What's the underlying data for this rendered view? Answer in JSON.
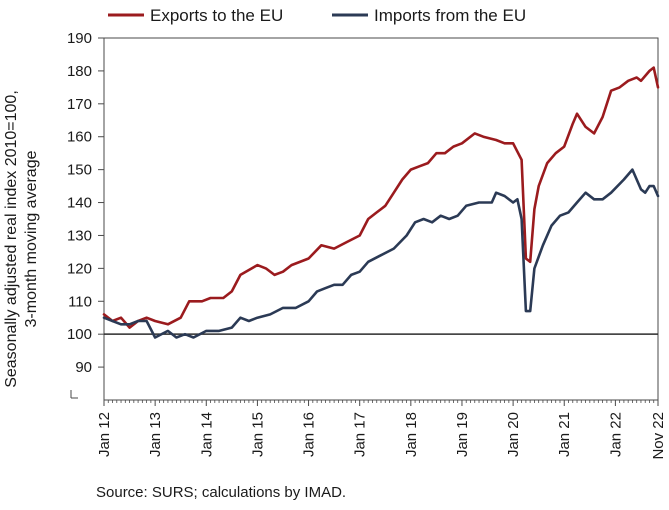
{
  "chart_data": {
    "type": "line",
    "xlabel": "",
    "ylabel_lines": [
      "Seasonally adjusted real index 2010=100,",
      "3-month moving average"
    ],
    "ylim": [
      80,
      190
    ],
    "yticks": [
      190,
      180,
      170,
      160,
      150,
      140,
      130,
      120,
      110,
      100,
      90
    ],
    "baseline": 100,
    "xticks": [
      "Jan 12",
      "Jan 13",
      "Jan 14",
      "Jan 15",
      "Jan 16",
      "Jan 17",
      "Jan 18",
      "Jan 19",
      "Jan 20",
      "Jan 21",
      "Jan 22",
      "Nov 22"
    ],
    "legend_position": "top",
    "grid": false,
    "series": [
      {
        "name": "Exports to the EU",
        "color": "#9b1b1e",
        "points": [
          [
            "Jan 12",
            106
          ],
          [
            "Mar 12",
            104
          ],
          [
            "May 12",
            105
          ],
          [
            "Jul 12",
            102
          ],
          [
            "Sep 12",
            104
          ],
          [
            "Nov 12",
            105
          ],
          [
            "Jan 13",
            104
          ],
          [
            "Apr 13",
            103
          ],
          [
            "Jul 13",
            105
          ],
          [
            "Sep 13",
            110
          ],
          [
            "Dec 13",
            110
          ],
          [
            "Feb 14",
            111
          ],
          [
            "May 14",
            111
          ],
          [
            "Jul 14",
            113
          ],
          [
            "Sep 14",
            118
          ],
          [
            "Jan 15",
            121
          ],
          [
            "Mar 15",
            120
          ],
          [
            "May 15",
            118
          ],
          [
            "Jul 15",
            119
          ],
          [
            "Sep 15",
            121
          ],
          [
            "Jan 16",
            123
          ],
          [
            "Apr 16",
            127
          ],
          [
            "Jul 16",
            126
          ],
          [
            "Oct 16",
            128
          ],
          [
            "Jan 17",
            130
          ],
          [
            "Mar 17",
            135
          ],
          [
            "May 17",
            137
          ],
          [
            "Jul 17",
            139
          ],
          [
            "Sep 17",
            143
          ],
          [
            "Nov 17",
            147
          ],
          [
            "Jan 18",
            150
          ],
          [
            "Mar 18",
            151
          ],
          [
            "May 18",
            152
          ],
          [
            "Jul 18",
            155
          ],
          [
            "Sep 18",
            155
          ],
          [
            "Nov 18",
            157
          ],
          [
            "Jan 19",
            158
          ],
          [
            "Apr 19",
            161
          ],
          [
            "Jun 19",
            160
          ],
          [
            "Sep 19",
            159
          ],
          [
            "Nov 19",
            158
          ],
          [
            "Jan 20",
            158
          ],
          [
            "Mar 20",
            153
          ],
          [
            "Apr 20",
            123
          ],
          [
            "May 20",
            122
          ],
          [
            "Jun 20",
            138
          ],
          [
            "Jul 20",
            145
          ],
          [
            "Sep 20",
            152
          ],
          [
            "Nov 20",
            155
          ],
          [
            "Jan 21",
            157
          ],
          [
            "Mar 21",
            164
          ],
          [
            "Apr 21",
            167
          ],
          [
            "Jun 21",
            163
          ],
          [
            "Aug 21",
            161
          ],
          [
            "Oct 21",
            166
          ],
          [
            "Dec 21",
            174
          ],
          [
            "Feb 22",
            175
          ],
          [
            "Apr 22",
            177
          ],
          [
            "Jun 22",
            178
          ],
          [
            "Jul 22",
            177
          ],
          [
            "Sep 22",
            180
          ],
          [
            "Oct 22",
            181
          ],
          [
            "Nov 22",
            175
          ]
        ]
      },
      {
        "name": "Imports from the EU",
        "color": "#2b3a55",
        "points": [
          [
            "Jan 12",
            105
          ],
          [
            "Mar 12",
            104
          ],
          [
            "May 12",
            103
          ],
          [
            "Jul 12",
            103
          ],
          [
            "Sep 12",
            104
          ],
          [
            "Nov 12",
            104
          ],
          [
            "Jan 13",
            99
          ],
          [
            "Apr 13",
            101
          ],
          [
            "Jun 13",
            99
          ],
          [
            "Aug 13",
            100
          ],
          [
            "Oct 13",
            99
          ],
          [
            "Jan 14",
            101
          ],
          [
            "Apr 14",
            101
          ],
          [
            "Jul 14",
            102
          ],
          [
            "Sep 14",
            105
          ],
          [
            "Nov 14",
            104
          ],
          [
            "Jan 15",
            105
          ],
          [
            "Apr 15",
            106
          ],
          [
            "Jul 15",
            108
          ],
          [
            "Oct 15",
            108
          ],
          [
            "Jan 16",
            110
          ],
          [
            "Mar 16",
            113
          ],
          [
            "May 16",
            114
          ],
          [
            "Jul 16",
            115
          ],
          [
            "Sep 16",
            115
          ],
          [
            "Nov 16",
            118
          ],
          [
            "Jan 17",
            119
          ],
          [
            "Mar 17",
            122
          ],
          [
            "Jun 17",
            124
          ],
          [
            "Sep 17",
            126
          ],
          [
            "Dec 17",
            130
          ],
          [
            "Feb 18",
            134
          ],
          [
            "Apr 18",
            135
          ],
          [
            "Jun 18",
            134
          ],
          [
            "Aug 18",
            136
          ],
          [
            "Oct 18",
            135
          ],
          [
            "Dec 18",
            136
          ],
          [
            "Feb 19",
            139
          ],
          [
            "May 19",
            140
          ],
          [
            "Aug 19",
            140
          ],
          [
            "Sep 19",
            143
          ],
          [
            "Nov 19",
            142
          ],
          [
            "Jan 20",
            140
          ],
          [
            "Feb 20",
            141
          ],
          [
            "Mar 20",
            135
          ],
          [
            "Apr 20",
            107
          ],
          [
            "May 20",
            107
          ],
          [
            "Jun 20",
            120
          ],
          [
            "Aug 20",
            127
          ],
          [
            "Oct 20",
            133
          ],
          [
            "Dec 20",
            136
          ],
          [
            "Feb 21",
            137
          ],
          [
            "Apr 21",
            140
          ],
          [
            "Jun 21",
            143
          ],
          [
            "Aug 21",
            141
          ],
          [
            "Oct 21",
            141
          ],
          [
            "Dec 21",
            143
          ],
          [
            "Mar 22",
            147
          ],
          [
            "May 22",
            150
          ],
          [
            "Jul 22",
            144
          ],
          [
            "Aug 22",
            143
          ],
          [
            "Sep 22",
            145
          ],
          [
            "Oct 22",
            145
          ],
          [
            "Nov 22",
            142
          ]
        ]
      }
    ]
  },
  "source": "Source: SURS; calculations by IMAD."
}
